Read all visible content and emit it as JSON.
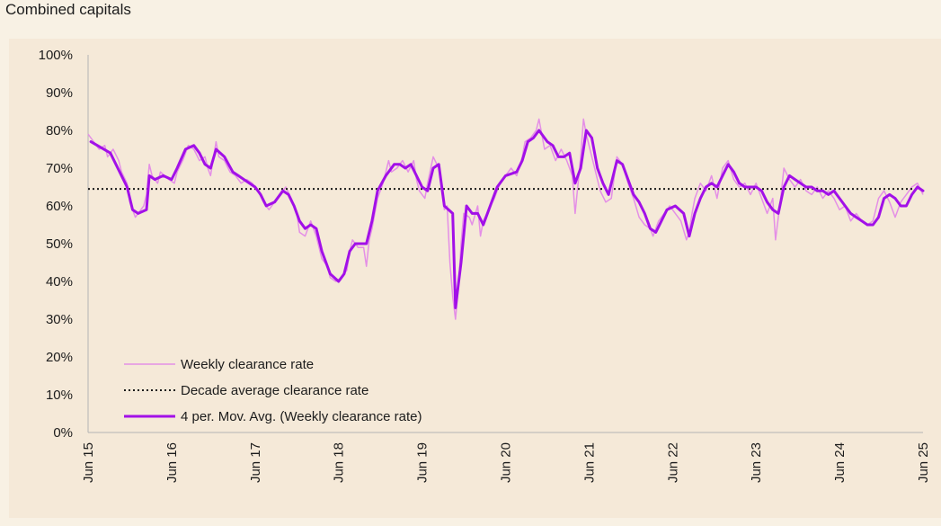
{
  "heading": "Combined capitals",
  "chart_data": {
    "type": "line",
    "title": "",
    "xlabel": "",
    "ylabel": "",
    "x_range": [
      "Jun 15",
      "Jun 25"
    ],
    "ylim": [
      0,
      100
    ],
    "y_ticks": [
      "0%",
      "10%",
      "20%",
      "30%",
      "40%",
      "50%",
      "60%",
      "70%",
      "80%",
      "90%",
      "100%"
    ],
    "x_ticks": [
      "Jun 15",
      "Jun 16",
      "Jun 17",
      "Jun 18",
      "Jun 19",
      "Jun 20",
      "Jun 21",
      "Jun 22",
      "Jun 23",
      "Jun 24",
      "Jun 25"
    ],
    "grid": false,
    "legend_position": "bottom-left",
    "colors": {
      "weekly": "#e48fe6",
      "average": "#1a1a1a",
      "moving_avg": "#a210e8"
    },
    "legend": [
      "Weekly clearance rate",
      "Decade average clearance rate",
      "4 per. Mov. Avg. (Weekly clearance rate)"
    ],
    "decade_average": 64.5,
    "series": [
      {
        "name": "4 per. Mov. Avg. (Weekly clearance rate)",
        "points": [
          [
            0.05,
            77
          ],
          [
            0.4,
            74
          ],
          [
            0.5,
            71
          ],
          [
            0.7,
            65
          ],
          [
            0.8,
            59
          ],
          [
            0.9,
            58
          ],
          [
            1.05,
            59
          ],
          [
            1.1,
            68
          ],
          [
            1.2,
            67
          ],
          [
            1.35,
            68
          ],
          [
            1.5,
            67
          ],
          [
            1.6,
            70
          ],
          [
            1.75,
            75
          ],
          [
            1.9,
            76
          ],
          [
            2.0,
            74
          ],
          [
            2.1,
            71
          ],
          [
            2.2,
            70
          ],
          [
            2.3,
            75
          ],
          [
            2.45,
            73
          ],
          [
            2.6,
            69
          ],
          [
            2.7,
            68
          ],
          [
            2.8,
            67
          ],
          [
            3.0,
            65
          ],
          [
            3.1,
            63
          ],
          [
            3.2,
            60
          ],
          [
            3.35,
            61
          ],
          [
            3.5,
            64
          ],
          [
            3.6,
            63
          ],
          [
            3.7,
            60
          ],
          [
            3.8,
            56
          ],
          [
            3.9,
            54
          ],
          [
            4.0,
            55
          ],
          [
            4.1,
            54
          ],
          [
            4.2,
            48
          ],
          [
            4.35,
            42
          ],
          [
            4.5,
            40
          ],
          [
            4.6,
            42
          ],
          [
            4.7,
            48
          ],
          [
            4.8,
            50
          ],
          [
            4.9,
            50
          ],
          [
            5.0,
            50
          ],
          [
            5.1,
            56
          ],
          [
            5.2,
            64
          ],
          [
            5.35,
            68
          ],
          [
            5.5,
            71
          ],
          [
            5.6,
            71
          ],
          [
            5.7,
            70
          ],
          [
            5.8,
            71
          ],
          [
            5.9,
            68
          ],
          [
            6.0,
            65
          ],
          [
            6.1,
            64
          ],
          [
            6.2,
            70
          ],
          [
            6.3,
            71
          ],
          [
            6.4,
            60
          ],
          [
            6.55,
            58
          ],
          [
            6.6,
            33
          ],
          [
            6.7,
            45
          ],
          [
            6.8,
            60
          ],
          [
            6.9,
            58
          ],
          [
            7.0,
            58
          ],
          [
            7.1,
            55
          ],
          [
            7.2,
            59
          ],
          [
            7.35,
            65
          ],
          [
            7.5,
            68
          ],
          [
            7.7,
            69
          ],
          [
            7.8,
            72
          ],
          [
            7.9,
            77
          ],
          [
            8.0,
            78
          ],
          [
            8.1,
            80
          ],
          [
            8.25,
            77
          ],
          [
            8.35,
            76
          ],
          [
            8.45,
            73
          ],
          [
            8.55,
            73
          ],
          [
            8.65,
            74
          ],
          [
            8.75,
            66
          ],
          [
            8.85,
            70
          ],
          [
            8.95,
            80
          ],
          [
            9.05,
            78
          ],
          [
            9.15,
            70
          ],
          [
            9.25,
            66
          ],
          [
            9.35,
            63
          ],
          [
            9.45,
            69
          ],
          [
            9.5,
            72
          ],
          [
            9.6,
            71
          ],
          [
            9.7,
            67
          ],
          [
            9.8,
            63
          ],
          [
            9.9,
            61
          ],
          [
            10.0,
            58
          ],
          [
            10.1,
            54
          ],
          [
            10.2,
            53
          ],
          [
            10.3,
            56
          ],
          [
            10.4,
            59
          ],
          [
            10.55,
            60
          ],
          [
            10.7,
            58
          ],
          [
            10.8,
            52
          ],
          [
            10.9,
            58
          ],
          [
            11.0,
            62
          ],
          [
            11.1,
            65
          ],
          [
            11.2,
            66
          ],
          [
            11.3,
            65
          ],
          [
            11.4,
            68
          ],
          [
            11.5,
            71
          ],
          [
            11.6,
            69
          ],
          [
            11.7,
            66
          ],
          [
            11.8,
            65
          ],
          [
            11.9,
            65
          ],
          [
            12.0,
            65
          ],
          [
            12.1,
            64
          ],
          [
            12.2,
            61
          ],
          [
            12.3,
            59
          ],
          [
            12.4,
            58
          ],
          [
            12.5,
            65
          ],
          [
            12.6,
            68
          ],
          [
            12.7,
            67
          ],
          [
            12.8,
            66
          ],
          [
            12.9,
            65
          ],
          [
            13.0,
            65
          ],
          [
            13.1,
            64
          ],
          [
            13.2,
            64
          ],
          [
            13.3,
            63
          ],
          [
            13.4,
            64
          ],
          [
            13.5,
            62
          ],
          [
            13.6,
            60
          ],
          [
            13.7,
            58
          ],
          [
            13.8,
            57
          ],
          [
            13.9,
            56
          ],
          [
            14.0,
            55
          ],
          [
            14.1,
            55
          ],
          [
            14.2,
            57
          ],
          [
            14.3,
            62
          ],
          [
            14.4,
            63
          ],
          [
            14.5,
            62
          ],
          [
            14.6,
            60
          ],
          [
            14.7,
            60
          ],
          [
            14.8,
            63
          ],
          [
            14.9,
            65
          ],
          [
            15.0,
            64
          ]
        ]
      },
      {
        "name": "Weekly clearance rate",
        "points": [
          [
            0.0,
            79
          ],
          [
            0.1,
            77
          ],
          [
            0.2,
            75
          ],
          [
            0.3,
            76
          ],
          [
            0.35,
            73
          ],
          [
            0.45,
            75
          ],
          [
            0.55,
            72
          ],
          [
            0.6,
            69
          ],
          [
            0.7,
            66
          ],
          [
            0.75,
            61
          ],
          [
            0.85,
            57
          ],
          [
            0.95,
            59
          ],
          [
            1.0,
            60
          ],
          [
            1.05,
            63
          ],
          [
            1.1,
            71
          ],
          [
            1.15,
            68
          ],
          [
            1.25,
            66
          ],
          [
            1.3,
            69
          ],
          [
            1.45,
            67
          ],
          [
            1.55,
            66
          ],
          [
            1.6,
            69
          ],
          [
            1.7,
            72
          ],
          [
            1.75,
            74
          ],
          [
            1.8,
            76
          ],
          [
            1.9,
            75
          ],
          [
            2.0,
            72
          ],
          [
            2.1,
            73
          ],
          [
            2.15,
            70
          ],
          [
            2.2,
            68
          ],
          [
            2.3,
            77
          ],
          [
            2.35,
            73
          ],
          [
            2.45,
            72
          ],
          [
            2.55,
            69
          ],
          [
            2.65,
            68
          ],
          [
            2.75,
            66
          ],
          [
            2.85,
            67
          ],
          [
            2.95,
            66
          ],
          [
            3.05,
            64
          ],
          [
            3.15,
            61
          ],
          [
            3.25,
            59
          ],
          [
            3.35,
            61
          ],
          [
            3.45,
            63
          ],
          [
            3.55,
            65
          ],
          [
            3.65,
            62
          ],
          [
            3.75,
            58
          ],
          [
            3.8,
            53
          ],
          [
            3.9,
            52
          ],
          [
            4.0,
            56
          ],
          [
            4.1,
            52
          ],
          [
            4.2,
            46
          ],
          [
            4.3,
            44
          ],
          [
            4.35,
            41
          ],
          [
            4.45,
            40
          ],
          [
            4.55,
            41
          ],
          [
            4.65,
            43
          ],
          [
            4.7,
            48
          ],
          [
            4.75,
            51
          ],
          [
            4.85,
            49
          ],
          [
            4.95,
            49
          ],
          [
            5.0,
            44
          ],
          [
            5.05,
            51
          ],
          [
            5.1,
            54
          ],
          [
            5.15,
            58
          ],
          [
            5.2,
            62
          ],
          [
            5.3,
            66
          ],
          [
            5.4,
            72
          ],
          [
            5.45,
            69
          ],
          [
            5.55,
            70
          ],
          [
            5.65,
            72
          ],
          [
            5.75,
            69
          ],
          [
            5.85,
            72
          ],
          [
            5.9,
            67
          ],
          [
            5.95,
            64
          ],
          [
            6.05,
            62
          ],
          [
            6.1,
            66
          ],
          [
            6.2,
            73
          ],
          [
            6.3,
            70
          ],
          [
            6.4,
            59
          ],
          [
            6.45,
            60
          ],
          [
            6.5,
            45
          ],
          [
            6.55,
            36
          ],
          [
            6.6,
            30
          ],
          [
            6.65,
            38
          ],
          [
            6.7,
            50
          ],
          [
            6.75,
            58
          ],
          [
            6.85,
            57
          ],
          [
            6.9,
            55
          ],
          [
            7.0,
            60
          ],
          [
            7.05,
            52
          ],
          [
            7.1,
            56
          ],
          [
            7.2,
            59
          ],
          [
            7.3,
            62
          ],
          [
            7.4,
            66
          ],
          [
            7.5,
            68
          ],
          [
            7.6,
            70
          ],
          [
            7.7,
            68
          ],
          [
            7.8,
            73
          ],
          [
            7.85,
            77
          ],
          [
            7.95,
            78
          ],
          [
            8.05,
            80
          ],
          [
            8.1,
            83
          ],
          [
            8.15,
            79
          ],
          [
            8.2,
            75
          ],
          [
            8.3,
            76
          ],
          [
            8.4,
            72
          ],
          [
            8.5,
            75
          ],
          [
            8.6,
            72
          ],
          [
            8.7,
            68
          ],
          [
            8.75,
            58
          ],
          [
            8.85,
            73
          ],
          [
            8.9,
            83
          ],
          [
            8.95,
            79
          ],
          [
            9.0,
            76
          ],
          [
            9.1,
            70
          ],
          [
            9.2,
            64
          ],
          [
            9.3,
            61
          ],
          [
            9.4,
            62
          ],
          [
            9.5,
            73
          ],
          [
            9.6,
            71
          ],
          [
            9.7,
            66
          ],
          [
            9.8,
            62
          ],
          [
            9.9,
            57
          ],
          [
            10.0,
            55
          ],
          [
            10.1,
            54
          ],
          [
            10.15,
            52
          ],
          [
            10.25,
            56
          ],
          [
            10.35,
            58
          ],
          [
            10.45,
            60
          ],
          [
            10.55,
            58
          ],
          [
            10.65,
            56
          ],
          [
            10.75,
            51
          ],
          [
            10.8,
            53
          ],
          [
            10.85,
            58
          ],
          [
            10.9,
            62
          ],
          [
            11.0,
            66
          ],
          [
            11.1,
            64
          ],
          [
            11.2,
            68
          ],
          [
            11.3,
            62
          ],
          [
            11.4,
            70
          ],
          [
            11.5,
            72
          ],
          [
            11.6,
            67
          ],
          [
            11.7,
            65
          ],
          [
            11.8,
            66
          ],
          [
            11.9,
            63
          ],
          [
            12.0,
            66
          ],
          [
            12.1,
            62
          ],
          [
            12.2,
            58
          ],
          [
            12.3,
            62
          ],
          [
            12.35,
            51
          ],
          [
            12.45,
            63
          ],
          [
            12.5,
            70
          ],
          [
            12.6,
            67
          ],
          [
            12.7,
            65
          ],
          [
            12.8,
            67
          ],
          [
            12.9,
            64
          ],
          [
            13.0,
            63
          ],
          [
            13.1,
            65
          ],
          [
            13.2,
            62
          ],
          [
            13.3,
            64
          ],
          [
            13.4,
            62
          ],
          [
            13.5,
            59
          ],
          [
            13.6,
            60
          ],
          [
            13.7,
            56
          ],
          [
            13.8,
            58
          ],
          [
            13.9,
            56
          ],
          [
            14.0,
            55
          ],
          [
            14.1,
            56
          ],
          [
            14.2,
            62
          ],
          [
            14.3,
            64
          ],
          [
            14.4,
            61
          ],
          [
            14.5,
            57
          ],
          [
            14.6,
            61
          ],
          [
            14.7,
            63
          ],
          [
            14.8,
            65
          ],
          [
            14.9,
            66
          ],
          [
            15.0,
            63
          ]
        ]
      }
    ]
  }
}
